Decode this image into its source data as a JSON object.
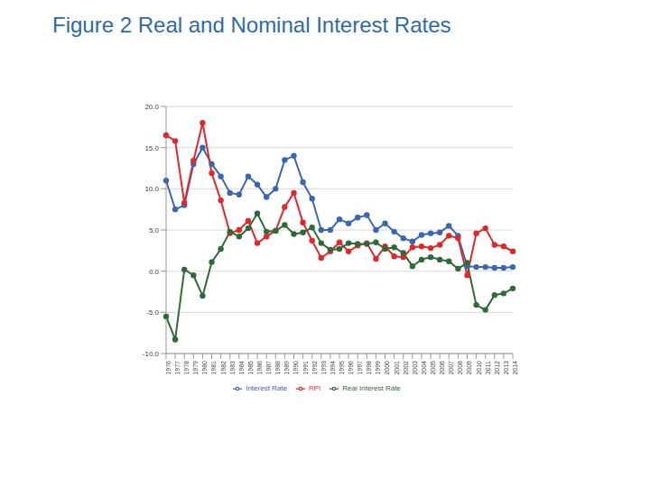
{
  "chart_data": {
    "type": "line",
    "title": "Figure 2 Real and Nominal Interest Rates",
    "categories": [
      "1976",
      "1977",
      "1978",
      "1979",
      "1980",
      "1981",
      "1982",
      "1983",
      "1984",
      "1985",
      "1986",
      "1987",
      "1988",
      "1989",
      "1990",
      "1991",
      "1992",
      "1993",
      "1994",
      "1995",
      "1996",
      "1997",
      "1998",
      "1999",
      "2000",
      "2001",
      "2002",
      "2003",
      "2004",
      "2005",
      "2006",
      "2007",
      "2008",
      "2009",
      "2010",
      "2011",
      "2012",
      "2013",
      "2014"
    ],
    "series": [
      {
        "name": "Interest Rate",
        "color": "#3a67b0",
        "marker": "circle",
        "values": [
          11.0,
          7.5,
          8.0,
          13.0,
          15.0,
          13.0,
          11.5,
          9.5,
          9.3,
          11.5,
          10.5,
          9.0,
          10.0,
          13.5,
          14.0,
          10.8,
          8.8,
          5.0,
          5.0,
          6.3,
          5.8,
          6.5,
          6.8,
          5.0,
          5.8,
          4.8,
          4.0,
          3.6,
          4.4,
          4.6,
          4.7,
          5.5,
          4.3,
          0.6,
          0.5,
          0.5,
          0.4,
          0.4,
          0.5
        ]
      },
      {
        "name": "RPI",
        "color": "#e0282c",
        "marker": "circle",
        "values": [
          16.5,
          15.8,
          8.3,
          13.4,
          18.0,
          11.9,
          8.6,
          4.6,
          5.0,
          6.1,
          3.4,
          4.2,
          4.9,
          7.8,
          9.5,
          5.9,
          3.7,
          1.6,
          2.4,
          3.5,
          2.4,
          3.1,
          3.4,
          1.5,
          3.0,
          1.8,
          1.7,
          2.9,
          3.0,
          2.8,
          3.2,
          4.3,
          4.0,
          -0.5,
          4.6,
          5.2,
          3.2,
          3.0,
          2.4
        ]
      },
      {
        "name": "Real Interest Rate",
        "color": "#2f6b3a",
        "marker": "circle",
        "values": [
          -5.5,
          -8.3,
          0.2,
          -0.5,
          -3.0,
          1.1,
          2.7,
          4.8,
          4.2,
          5.2,
          7.0,
          4.8,
          4.9,
          5.6,
          4.5,
          4.7,
          5.3,
          3.4,
          2.6,
          2.7,
          3.4,
          3.3,
          3.3,
          3.5,
          2.7,
          2.9,
          2.2,
          0.6,
          1.4,
          1.7,
          1.4,
          1.2,
          0.3,
          1.0,
          -4.1,
          -4.7,
          -2.9,
          -2.7,
          -2.1
        ]
      }
    ],
    "ylim": [
      -10,
      20
    ],
    "yticks": [
      {
        "value": -10,
        "label": "-10.0"
      },
      {
        "value": -5,
        "label": "-5.0"
      },
      {
        "value": 0,
        "label": "0.0"
      },
      {
        "value": 5,
        "label": "5.0"
      },
      {
        "value": 10,
        "label": "10.0"
      },
      {
        "value": 15,
        "label": "15.0"
      },
      {
        "value": 20,
        "label": "20.0"
      }
    ],
    "grid": true,
    "legend": "bottom"
  }
}
